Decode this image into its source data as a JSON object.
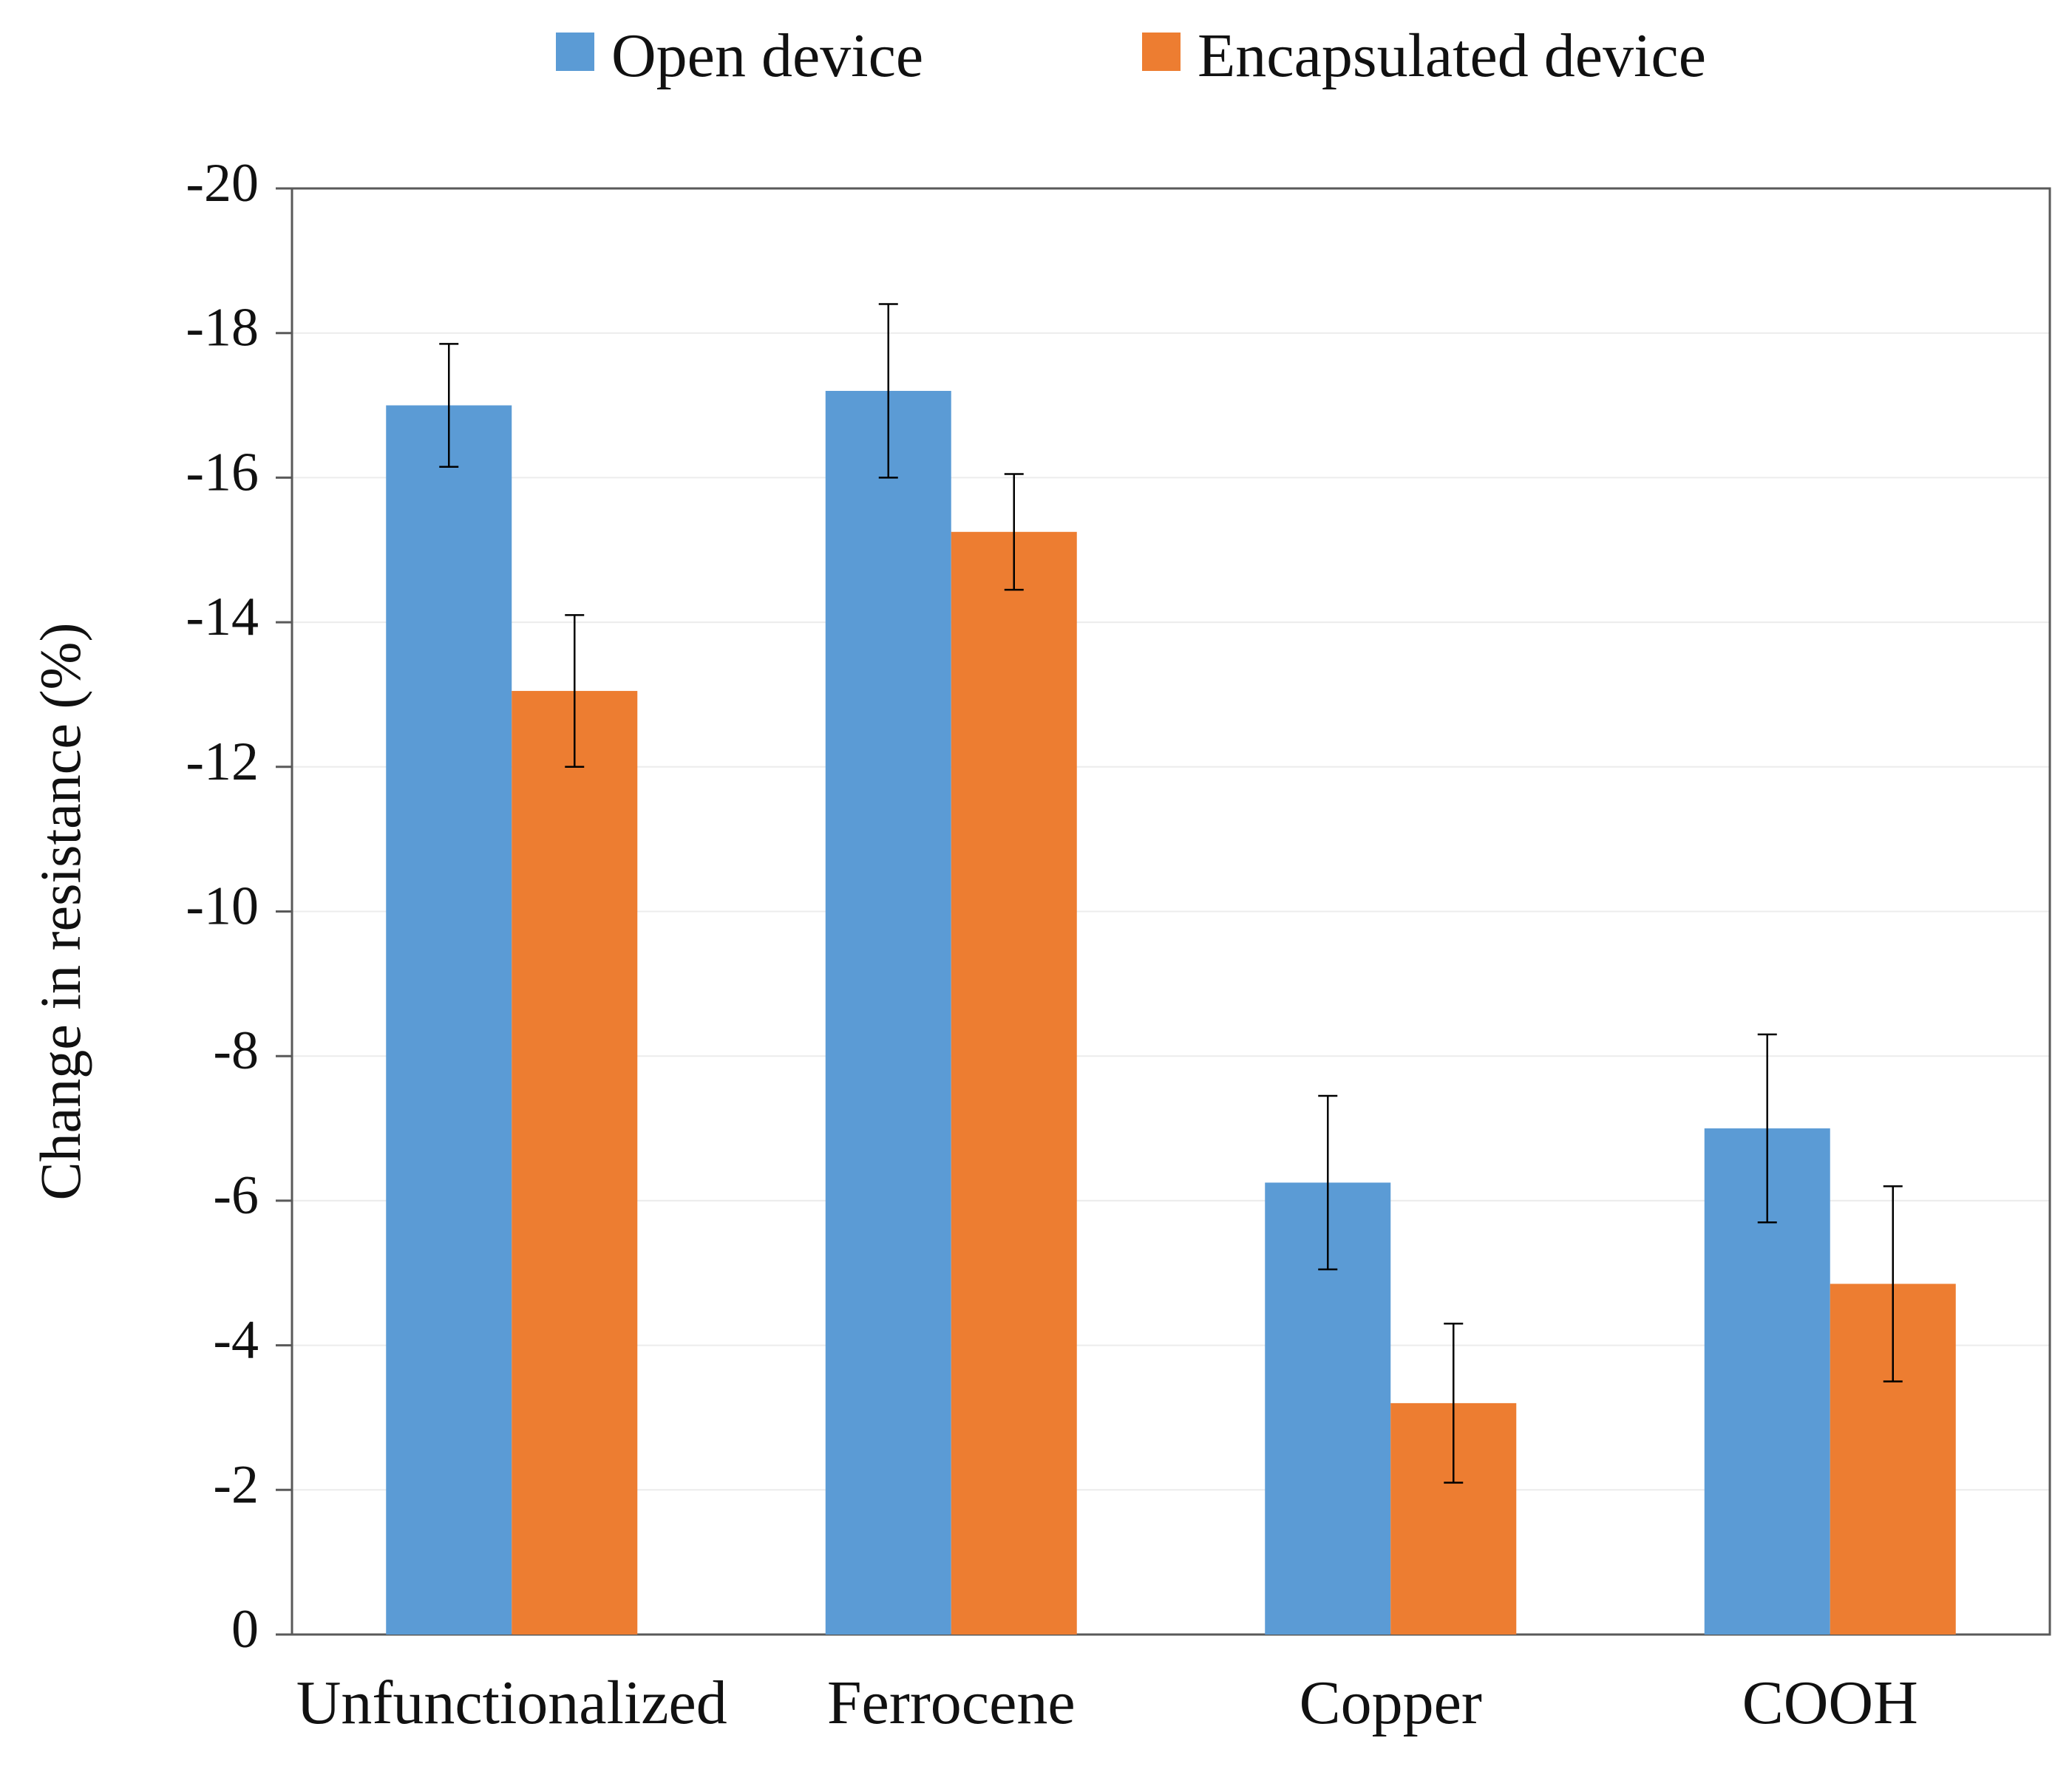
{
  "chart_data": {
    "type": "bar",
    "title": "",
    "xlabel": "",
    "ylabel": "Change in resistance (%)",
    "y_axis_inverted": true,
    "ylim": [
      0,
      -20
    ],
    "yticks": [
      0,
      -2,
      -4,
      -6,
      -8,
      -10,
      -12,
      -14,
      -16,
      -18,
      -20
    ],
    "ytick_labels": [
      "0",
      "-2",
      "-4",
      "-6",
      "-8",
      "-10",
      "-12",
      "-14",
      "-16",
      "-18",
      "-20"
    ],
    "grid": true,
    "legend_position": "top-center",
    "categories": [
      "Unfunctionalized",
      "Ferrocene",
      "Copper",
      "COOH"
    ],
    "series": [
      {
        "name": "Open device",
        "color": "#5B9BD5",
        "values": [
          -17.0,
          -17.2,
          -6.25,
          -7.0
        ],
        "error": [
          0.85,
          1.2,
          1.2,
          1.3
        ]
      },
      {
        "name": "Encapsulated device",
        "color": "#ED7D31",
        "values": [
          -13.05,
          -15.25,
          -3.2,
          -4.85
        ],
        "error": [
          1.05,
          0.8,
          1.1,
          1.35
        ]
      }
    ]
  }
}
